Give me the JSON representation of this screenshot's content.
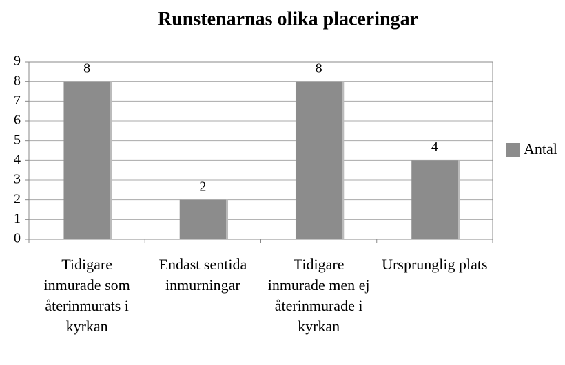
{
  "chart_data": {
    "type": "bar",
    "title": "Runstenarnas olika placeringar",
    "categories": [
      "Tidigare inmurade som återinmurats i kyrkan",
      "Endast sentida inmurningar",
      "Tidigare inmurade men ej återinmurade i kyrkan",
      "Ursprunglig plats"
    ],
    "series": [
      {
        "name": "Antal",
        "color": "#8c8c8c",
        "values": [
          8,
          2,
          8,
          4
        ]
      }
    ],
    "ylim": [
      0,
      9
    ],
    "yticks": [
      0,
      1,
      2,
      3,
      4,
      5,
      6,
      7,
      8,
      9
    ],
    "grid": true,
    "legend": "right"
  }
}
